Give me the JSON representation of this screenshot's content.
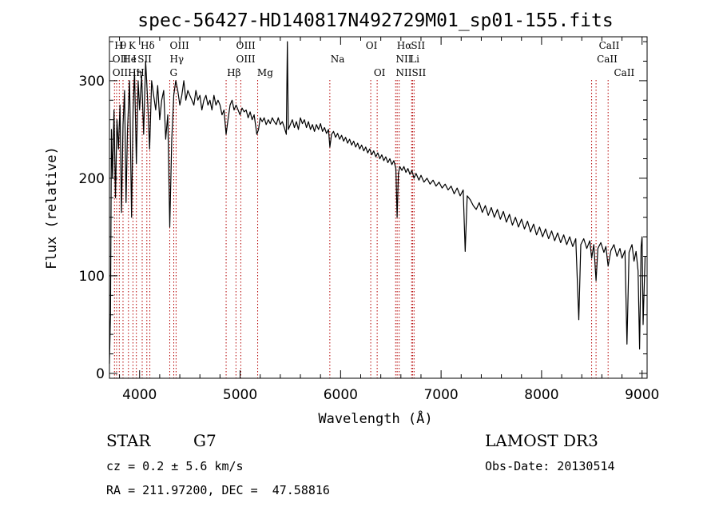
{
  "chart_data": {
    "type": "line",
    "title": "spec-56427-HD140817N492729M01_sp01-155.fits",
    "xlabel": "Wavelength (Å)",
    "ylabel": "Flux (relative)",
    "xlim": [
      3700,
      9050
    ],
    "ylim": [
      -5,
      345
    ],
    "xticks": [
      4000,
      5000,
      6000,
      7000,
      8000,
      9000
    ],
    "yticks": [
      0,
      100,
      200,
      300
    ],
    "line_color": "#000000",
    "marker_color": "#b40000",
    "series": [
      {
        "name": "flux",
        "points": [
          [
            3700,
            10
          ],
          [
            3710,
            60
          ],
          [
            3720,
            250
          ],
          [
            3730,
            200
          ],
          [
            3745,
            270
          ],
          [
            3760,
            180
          ],
          [
            3775,
            260
          ],
          [
            3790,
            230
          ],
          [
            3805,
            275
          ],
          [
            3820,
            165
          ],
          [
            3835,
            255
          ],
          [
            3850,
            290
          ],
          [
            3865,
            175
          ],
          [
            3880,
            250
          ],
          [
            3900,
            300
          ],
          [
            3920,
            160
          ],
          [
            3935,
            270
          ],
          [
            3950,
            310
          ],
          [
            3968,
            215
          ],
          [
            3985,
            300
          ],
          [
            4000,
            270
          ],
          [
            4020,
            305
          ],
          [
            4040,
            245
          ],
          [
            4060,
            320
          ],
          [
            4080,
            280
          ],
          [
            4100,
            230
          ],
          [
            4120,
            300
          ],
          [
            4140,
            285
          ],
          [
            4160,
            270
          ],
          [
            4180,
            295
          ],
          [
            4200,
            260
          ],
          [
            4220,
            280
          ],
          [
            4240,
            290
          ],
          [
            4260,
            240
          ],
          [
            4280,
            265
          ],
          [
            4300,
            150
          ],
          [
            4320,
            240
          ],
          [
            4340,
            285
          ],
          [
            4360,
            300
          ],
          [
            4380,
            290
          ],
          [
            4400,
            275
          ],
          [
            4420,
            285
          ],
          [
            4440,
            300
          ],
          [
            4460,
            280
          ],
          [
            4480,
            290
          ],
          [
            4500,
            285
          ],
          [
            4520,
            280
          ],
          [
            4540,
            275
          ],
          [
            4560,
            290
          ],
          [
            4580,
            280
          ],
          [
            4600,
            285
          ],
          [
            4620,
            270
          ],
          [
            4640,
            280
          ],
          [
            4660,
            285
          ],
          [
            4680,
            275
          ],
          [
            4700,
            280
          ],
          [
            4720,
            270
          ],
          [
            4740,
            285
          ],
          [
            4760,
            275
          ],
          [
            4780,
            280
          ],
          [
            4800,
            275
          ],
          [
            4820,
            265
          ],
          [
            4840,
            270
          ],
          [
            4861,
            245
          ],
          [
            4880,
            260
          ],
          [
            4900,
            275
          ],
          [
            4920,
            280
          ],
          [
            4940,
            270
          ],
          [
            4960,
            275
          ],
          [
            4980,
            270
          ],
          [
            5000,
            265
          ],
          [
            5020,
            272
          ],
          [
            5040,
            268
          ],
          [
            5060,
            270
          ],
          [
            5080,
            262
          ],
          [
            5100,
            268
          ],
          [
            5120,
            260
          ],
          [
            5140,
            265
          ],
          [
            5167,
            245
          ],
          [
            5183,
            250
          ],
          [
            5200,
            262
          ],
          [
            5220,
            258
          ],
          [
            5240,
            262
          ],
          [
            5260,
            255
          ],
          [
            5280,
            260
          ],
          [
            5300,
            256
          ],
          [
            5320,
            262
          ],
          [
            5340,
            258
          ],
          [
            5360,
            255
          ],
          [
            5380,
            262
          ],
          [
            5400,
            255
          ],
          [
            5420,
            258
          ],
          [
            5440,
            252
          ],
          [
            5460,
            245
          ],
          [
            5470,
            340
          ],
          [
            5480,
            250
          ],
          [
            5500,
            255
          ],
          [
            5520,
            260
          ],
          [
            5540,
            252
          ],
          [
            5560,
            258
          ],
          [
            5580,
            250
          ],
          [
            5600,
            262
          ],
          [
            5620,
            256
          ],
          [
            5640,
            260
          ],
          [
            5660,
            252
          ],
          [
            5680,
            258
          ],
          [
            5700,
            250
          ],
          [
            5720,
            255
          ],
          [
            5740,
            248
          ],
          [
            5760,
            255
          ],
          [
            5780,
            250
          ],
          [
            5800,
            256
          ],
          [
            5820,
            248
          ],
          [
            5840,
            252
          ],
          [
            5860,
            246
          ],
          [
            5880,
            250
          ],
          [
            5893,
            232
          ],
          [
            5910,
            245
          ],
          [
            5930,
            248
          ],
          [
            5950,
            242
          ],
          [
            5970,
            246
          ],
          [
            5990,
            240
          ],
          [
            6010,
            244
          ],
          [
            6030,
            238
          ],
          [
            6050,
            242
          ],
          [
            6070,
            236
          ],
          [
            6090,
            240
          ],
          [
            6110,
            234
          ],
          [
            6130,
            238
          ],
          [
            6150,
            232
          ],
          [
            6170,
            236
          ],
          [
            6190,
            230
          ],
          [
            6210,
            234
          ],
          [
            6230,
            228
          ],
          [
            6250,
            232
          ],
          [
            6270,
            226
          ],
          [
            6290,
            230
          ],
          [
            6310,
            224
          ],
          [
            6330,
            228
          ],
          [
            6350,
            222
          ],
          [
            6370,
            226
          ],
          [
            6390,
            220
          ],
          [
            6410,
            224
          ],
          [
            6430,
            218
          ],
          [
            6450,
            222
          ],
          [
            6470,
            216
          ],
          [
            6490,
            220
          ],
          [
            6510,
            214
          ],
          [
            6530,
            218
          ],
          [
            6550,
            210
          ],
          [
            6563,
            160
          ],
          [
            6575,
            205
          ],
          [
            6590,
            212
          ],
          [
            6610,
            208
          ],
          [
            6630,
            212
          ],
          [
            6650,
            206
          ],
          [
            6670,
            210
          ],
          [
            6690,
            204
          ],
          [
            6710,
            208
          ],
          [
            6730,
            200
          ],
          [
            6750,
            205
          ],
          [
            6780,
            198
          ],
          [
            6800,
            203
          ],
          [
            6830,
            196
          ],
          [
            6860,
            200
          ],
          [
            6890,
            194
          ],
          [
            6920,
            198
          ],
          [
            6950,
            192
          ],
          [
            6980,
            196
          ],
          [
            7010,
            190
          ],
          [
            7040,
            194
          ],
          [
            7070,
            188
          ],
          [
            7100,
            192
          ],
          [
            7130,
            184
          ],
          [
            7160,
            190
          ],
          [
            7190,
            182
          ],
          [
            7220,
            188
          ],
          [
            7240,
            125
          ],
          [
            7260,
            182
          ],
          [
            7290,
            178
          ],
          [
            7320,
            172
          ],
          [
            7350,
            168
          ],
          [
            7380,
            175
          ],
          [
            7410,
            165
          ],
          [
            7440,
            172
          ],
          [
            7470,
            162
          ],
          [
            7500,
            170
          ],
          [
            7530,
            160
          ],
          [
            7560,
            168
          ],
          [
            7590,
            158
          ],
          [
            7620,
            166
          ],
          [
            7650,
            155
          ],
          [
            7680,
            163
          ],
          [
            7710,
            152
          ],
          [
            7740,
            160
          ],
          [
            7770,
            150
          ],
          [
            7800,
            158
          ],
          [
            7830,
            148
          ],
          [
            7860,
            156
          ],
          [
            7890,
            145
          ],
          [
            7920,
            153
          ],
          [
            7950,
            142
          ],
          [
            7980,
            150
          ],
          [
            8010,
            140
          ],
          [
            8040,
            148
          ],
          [
            8070,
            138
          ],
          [
            8100,
            146
          ],
          [
            8130,
            136
          ],
          [
            8160,
            144
          ],
          [
            8190,
            134
          ],
          [
            8220,
            142
          ],
          [
            8250,
            132
          ],
          [
            8280,
            140
          ],
          [
            8310,
            130
          ],
          [
            8340,
            138
          ],
          [
            8370,
            55
          ],
          [
            8390,
            132
          ],
          [
            8420,
            138
          ],
          [
            8450,
            128
          ],
          [
            8480,
            136
          ],
          [
            8498,
            118
          ],
          [
            8520,
            132
          ],
          [
            8542,
            95
          ],
          [
            8560,
            128
          ],
          [
            8590,
            134
          ],
          [
            8620,
            124
          ],
          [
            8640,
            130
          ],
          [
            8662,
            110
          ],
          [
            8690,
            126
          ],
          [
            8720,
            132
          ],
          [
            8750,
            120
          ],
          [
            8780,
            128
          ],
          [
            8800,
            118
          ],
          [
            8830,
            126
          ],
          [
            8850,
            30
          ],
          [
            8870,
            124
          ],
          [
            8900,
            132
          ],
          [
            8920,
            115
          ],
          [
            8940,
            125
          ],
          [
            8960,
            105
          ],
          [
            8975,
            25
          ],
          [
            8990,
            130
          ],
          [
            9000,
            140
          ],
          [
            9010,
            50
          ],
          [
            9030,
            120
          ]
        ]
      }
    ],
    "line_markers": [
      {
        "wave": 3750,
        "label": "OII"
      },
      {
        "wave": 3771,
        "label": "Hη"
      },
      {
        "wave": 3798,
        "label": "Hε"
      },
      {
        "wave": 3835,
        "label": "Hη"
      },
      {
        "wave": 3889,
        "label": "HeI"
      },
      {
        "wave": 3934,
        "label": "K"
      },
      {
        "wave": 3968,
        "label": "H"
      },
      {
        "wave": 4026,
        "label": "HeI"
      },
      {
        "wave": 4072,
        "label": "SII"
      },
      {
        "wave": 4102,
        "label": "Hδ"
      },
      {
        "wave": 4300,
        "label": "G"
      },
      {
        "wave": 4340,
        "label": "Hγ"
      },
      {
        "wave": 4363,
        "label": "OIII"
      },
      {
        "wave": 4861,
        "label": "Hβ"
      },
      {
        "wave": 4959,
        "label": "OIII"
      },
      {
        "wave": 5007,
        "label": "OIII"
      },
      {
        "wave": 5175,
        "label": "Mg"
      },
      {
        "wave": 5893,
        "label": "Na"
      },
      {
        "wave": 6300,
        "label": "OI"
      },
      {
        "wave": 6364,
        "label": "OI"
      },
      {
        "wave": 6548,
        "label": "NII"
      },
      {
        "wave": 6563,
        "label": "Hα"
      },
      {
        "wave": 6583,
        "label": "NII"
      },
      {
        "wave": 6707,
        "label": "Li"
      },
      {
        "wave": 6716,
        "label": "SII"
      },
      {
        "wave": 6731,
        "label": "SII"
      },
      {
        "wave": 8498,
        "label": "CaII"
      },
      {
        "wave": 8542,
        "label": "CaII"
      },
      {
        "wave": 8662,
        "label": "CaII"
      }
    ],
    "line_label_rows": [
      [
        {
          "wave": 3750,
          "text": "H"
        },
        {
          "wave": 3810,
          "text": "θ"
        },
        {
          "wave": 3890,
          "text": "K"
        },
        {
          "wave": 4010,
          "text": "Hδ"
        },
        {
          "wave": 4300,
          "text": "O"
        },
        {
          "wave": 4380,
          "text": "III"
        },
        {
          "wave": 4960,
          "text": "O"
        },
        {
          "wave": 5040,
          "text": "III"
        },
        {
          "wave": 6250,
          "text": "OI"
        },
        {
          "wave": 6560,
          "text": "Hα"
        },
        {
          "wave": 6700,
          "text": "SII"
        },
        {
          "wave": 8570,
          "text": "CaII"
        }
      ],
      [
        {
          "wave": 3730,
          "text": "OII"
        },
        {
          "wave": 3830,
          "text": "He"
        },
        {
          "wave": 3930,
          "text": "I"
        },
        {
          "wave": 3980,
          "text": "SII"
        },
        {
          "wave": 4300,
          "text": "Hγ"
        },
        {
          "wave": 4960,
          "text": "OIII"
        },
        {
          "wave": 5900,
          "text": "Na"
        },
        {
          "wave": 6550,
          "text": "NII"
        },
        {
          "wave": 6690,
          "text": "Li"
        },
        {
          "wave": 8550,
          "text": "CaII"
        }
      ],
      [
        {
          "wave": 3730,
          "text": "OIIHη"
        },
        {
          "wave": 3965,
          "text": "H"
        },
        {
          "wave": 4300,
          "text": "G"
        },
        {
          "wave": 4870,
          "text": "Hβ"
        },
        {
          "wave": 5170,
          "text": "Mg"
        },
        {
          "wave": 6330,
          "text": "OI"
        },
        {
          "wave": 6550,
          "text": "NIISII"
        },
        {
          "wave": 8720,
          "text": "CaII"
        }
      ]
    ]
  },
  "info": {
    "object_class": "STAR",
    "subclass": "G7",
    "survey": "LAMOST DR3",
    "redshift": "cz = 0.2 ± 5.6 km/s",
    "obs_date": "Obs-Date: 20130514",
    "coords": "RA = 211.97200, DEC =  47.58816"
  }
}
